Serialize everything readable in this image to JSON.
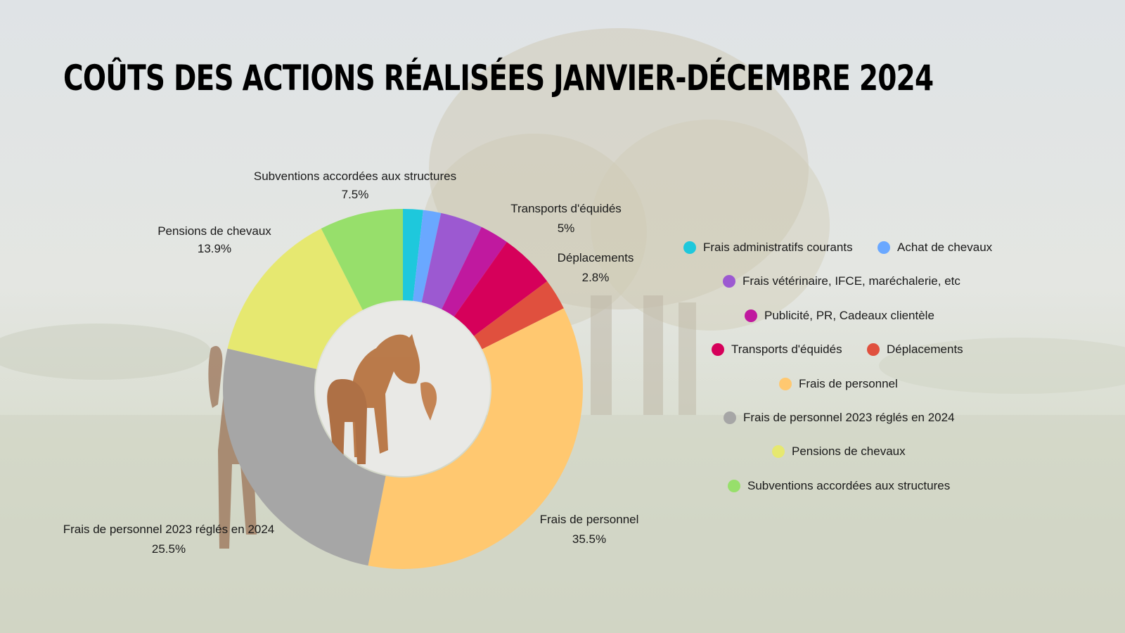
{
  "title": "COÛTS DES ACTIONS RÉALISÉES JANVIER-DÉCEMBRE 2024",
  "chart_data": {
    "type": "pie",
    "donut": true,
    "title": "COÛTS DES ACTIONS RÉALISÉES JANVIER-DÉCEMBRE 2024",
    "legend_position": "right",
    "slices": [
      {
        "label": "Frais administratifs courants",
        "value": 1.8,
        "color": "#1ec8dc"
      },
      {
        "label": "Achat de chevaux",
        "value": 1.6,
        "color": "#6aa8ff"
      },
      {
        "label": "Frais vétérinaire, IFCE, maréchalerie, etc",
        "value": 3.8,
        "color": "#9c59d1"
      },
      {
        "label": "Publicité, PR, Cadeaux clientèle",
        "value": 2.6,
        "color": "#c0199f"
      },
      {
        "label": "Transports d'équidés",
        "value": 5,
        "color": "#d6005a",
        "display": "5%"
      },
      {
        "label": "Déplacements",
        "value": 2.8,
        "color": "#e0503e",
        "display": "2.8%"
      },
      {
        "label": "Frais de personnel",
        "value": 35.5,
        "color": "#ffc870",
        "display": "35.5%"
      },
      {
        "label": "Frais de personnel 2023 réglés en 2024",
        "value": 25.5,
        "color": "#a6a6a6",
        "display": "25.5%"
      },
      {
        "label": "Pensions de chevaux",
        "value": 13.9,
        "color": "#e6e870",
        "display": "13.9%"
      },
      {
        "label": "Subventions accordées aux structures",
        "value": 7.5,
        "color": "#97df6b",
        "display": "7.5%"
      }
    ]
  }
}
